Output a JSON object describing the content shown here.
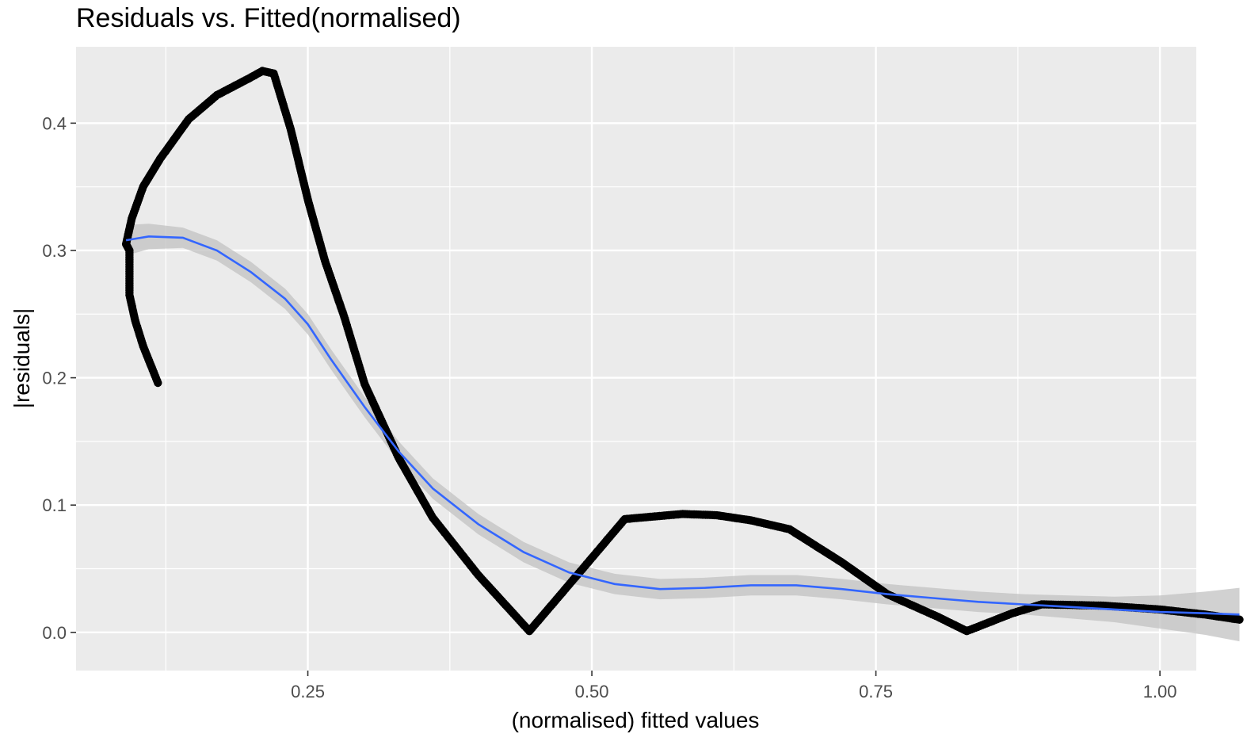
{
  "chart_data": {
    "type": "scatter",
    "title": "Residuals vs. Fitted(normalised)",
    "xlabel": "(normalised) fitted values",
    "ylabel": "|residuals|",
    "xlim": [
      0.046,
      1.032
    ],
    "ylim": [
      -0.03,
      0.46
    ],
    "x_ticks": [
      0.25,
      0.5,
      0.75,
      1.0
    ],
    "x_tick_labels": [
      "0.25",
      "0.50",
      "0.75",
      "1.00"
    ],
    "y_ticks": [
      0.0,
      0.1,
      0.2,
      0.3,
      0.4
    ],
    "y_tick_labels": [
      "0.0",
      "0.1",
      "0.2",
      "0.3",
      "0.4"
    ],
    "grid": true,
    "legend": "none",
    "colors": {
      "panel": "#ebebeb",
      "grid": "#ffffff",
      "points": "#000000",
      "smooth": "#3366ff",
      "ribbon": "#c2c2c2"
    },
    "points_path": [
      [
        0.118,
        0.196
      ],
      [
        0.105,
        0.225
      ],
      [
        0.098,
        0.245
      ],
      [
        0.093,
        0.265
      ],
      [
        0.093,
        0.3
      ],
      [
        0.09,
        0.305
      ],
      [
        0.095,
        0.325
      ],
      [
        0.105,
        0.35
      ],
      [
        0.12,
        0.372
      ],
      [
        0.145,
        0.403
      ],
      [
        0.17,
        0.422
      ],
      [
        0.2,
        0.436
      ],
      [
        0.21,
        0.441
      ],
      [
        0.22,
        0.439
      ],
      [
        0.235,
        0.395
      ],
      [
        0.25,
        0.34
      ],
      [
        0.265,
        0.292
      ],
      [
        0.282,
        0.248
      ],
      [
        0.3,
        0.195
      ],
      [
        0.33,
        0.137
      ],
      [
        0.36,
        0.09
      ],
      [
        0.4,
        0.045
      ],
      [
        0.445,
        0.001
      ],
      [
        0.49,
        0.048
      ],
      [
        0.529,
        0.089
      ],
      [
        0.58,
        0.093
      ],
      [
        0.61,
        0.092
      ],
      [
        0.64,
        0.088
      ],
      [
        0.674,
        0.081
      ],
      [
        0.72,
        0.055
      ],
      [
        0.76,
        0.03
      ],
      [
        0.805,
        0.012
      ],
      [
        0.83,
        0.001
      ],
      [
        0.87,
        0.015
      ],
      [
        0.896,
        0.022
      ],
      [
        0.95,
        0.021
      ],
      [
        1.0,
        0.018
      ],
      [
        1.04,
        0.014
      ],
      [
        1.07,
        0.01
      ]
    ],
    "smooth": [
      [
        0.09,
        0.308
      ],
      [
        0.11,
        0.311
      ],
      [
        0.14,
        0.31
      ],
      [
        0.17,
        0.3
      ],
      [
        0.2,
        0.283
      ],
      [
        0.23,
        0.262
      ],
      [
        0.25,
        0.242
      ],
      [
        0.27,
        0.215
      ],
      [
        0.3,
        0.177
      ],
      [
        0.33,
        0.142
      ],
      [
        0.36,
        0.113
      ],
      [
        0.4,
        0.085
      ],
      [
        0.44,
        0.063
      ],
      [
        0.48,
        0.047
      ],
      [
        0.52,
        0.038
      ],
      [
        0.56,
        0.034
      ],
      [
        0.6,
        0.035
      ],
      [
        0.64,
        0.037
      ],
      [
        0.68,
        0.037
      ],
      [
        0.72,
        0.034
      ],
      [
        0.76,
        0.03
      ],
      [
        0.8,
        0.027
      ],
      [
        0.84,
        0.024
      ],
      [
        0.88,
        0.022
      ],
      [
        0.92,
        0.02
      ],
      [
        0.96,
        0.018
      ],
      [
        1.0,
        0.016
      ],
      [
        1.04,
        0.015
      ],
      [
        1.07,
        0.014
      ]
    ],
    "smooth_se": [
      0.012,
      0.01,
      0.008,
      0.008,
      0.008,
      0.008,
      0.008,
      0.008,
      0.008,
      0.008,
      0.008,
      0.008,
      0.008,
      0.008,
      0.008,
      0.008,
      0.008,
      0.008,
      0.008,
      0.008,
      0.008,
      0.008,
      0.008,
      0.008,
      0.009,
      0.01,
      0.013,
      0.017,
      0.021
    ]
  }
}
